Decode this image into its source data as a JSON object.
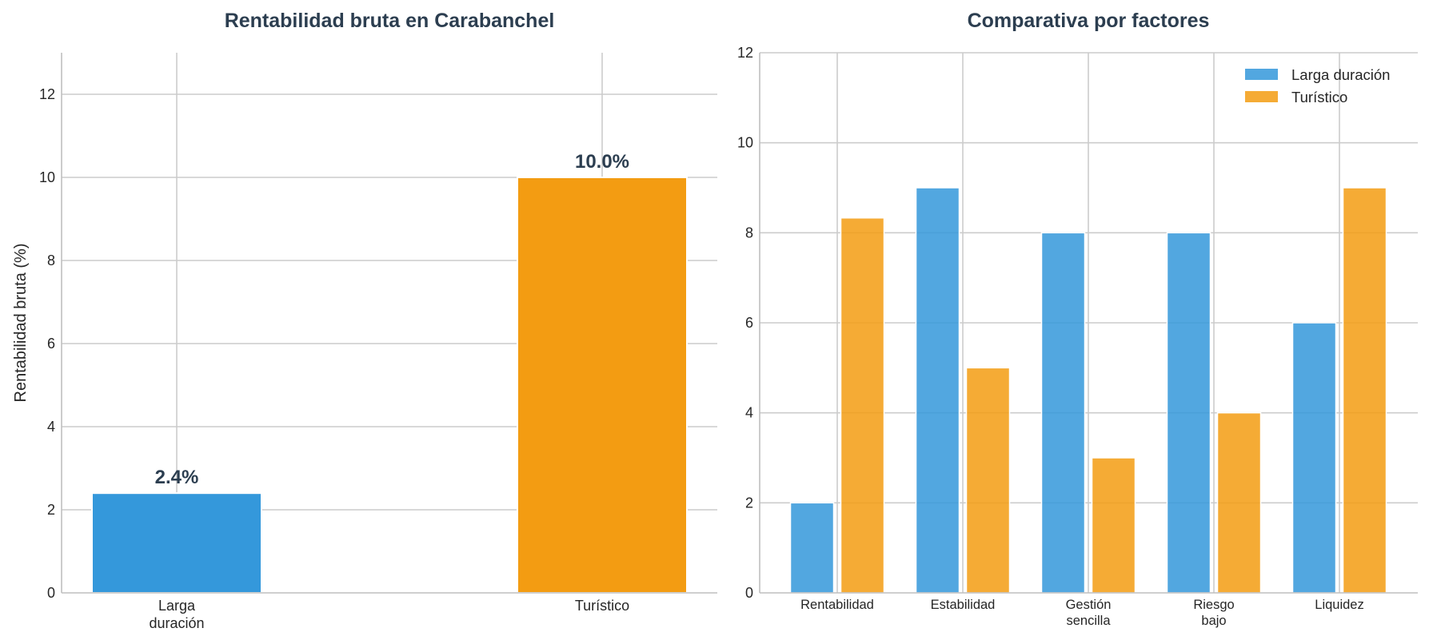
{
  "chart_data": [
    {
      "type": "bar",
      "title": "Rentabilidad bruta en Carabanchel",
      "ylabel": "Rentabilidad bruta (%)",
      "xlabel": "",
      "categories": [
        [
          "Larga",
          "duración"
        ],
        [
          "Turístico"
        ]
      ],
      "values": [
        2.4,
        10.0
      ],
      "value_labels": [
        "2.4%",
        "10.0%"
      ],
      "colors": [
        "#3498db",
        "#f39c12"
      ],
      "ylim": [
        0,
        13
      ],
      "yticks": [
        0,
        2,
        4,
        6,
        8,
        10,
        12
      ],
      "grid": true
    },
    {
      "type": "bar",
      "title": "Comparativa por factores",
      "xlabel": "",
      "ylabel": "",
      "categories": [
        [
          "Rentabilidad"
        ],
        [
          "Estabilidad"
        ],
        [
          "Gestión",
          "sencilla"
        ],
        [
          "Riesgo",
          "bajo"
        ],
        [
          "Liquidez"
        ]
      ],
      "series": [
        {
          "name": "Larga duración",
          "values": [
            2,
            9,
            8,
            8,
            6
          ],
          "color": "#3498db"
        },
        {
          "name": "Turístico",
          "values": [
            8.33,
            5,
            3,
            4,
            9
          ],
          "color": "#f39c12"
        }
      ],
      "ylim": [
        0,
        12
      ],
      "yticks": [
        0,
        2,
        4,
        6,
        8,
        10,
        12
      ],
      "legend": "top-right",
      "grid": true
    }
  ]
}
